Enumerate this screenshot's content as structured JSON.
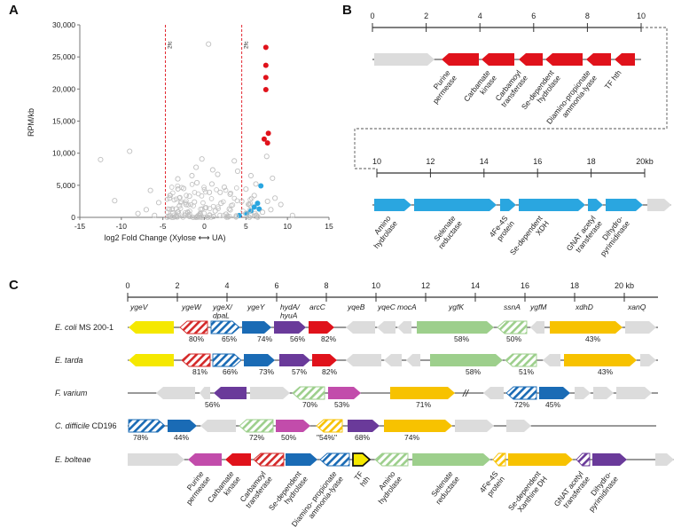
{
  "panels": {
    "a": "A",
    "b": "B",
    "c": "C"
  },
  "colors": {
    "red": "#e0121b",
    "blue": "#2aa6e0",
    "grey": "#dcdcdc",
    "yellow": "#f5e800",
    "darkred": "#d42a2a",
    "navy": "#1a6bb5",
    "purple": "#6a3a9a",
    "green": "#9dcf8c",
    "magenta": "#c24cab",
    "gold": "#f7c200",
    "scatter_grey": "#bfbfbf"
  },
  "chart_data": {
    "type": "scatter",
    "xlabel": "log2 Fold Change (Xylose ⟷ UA)",
    "ylabel": "RPM/kb",
    "xlim": [
      -15,
      15
    ],
    "ylim": [
      0,
      30000
    ],
    "xticks": [
      -15,
      -10,
      -5,
      0,
      5,
      10,
      15
    ],
    "yticks": [
      "0",
      "5,000",
      "10,000",
      "15,000",
      "20,000",
      "25,000",
      "30,000"
    ],
    "threshold_label": "2fc",
    "thresholds": [
      -4.7,
      4.5
    ],
    "series": [
      {
        "color": "red",
        "points": [
          [
            7.4,
            26500
          ],
          [
            7.4,
            23700
          ],
          [
            7.4,
            21800
          ],
          [
            7.4,
            19900
          ],
          [
            7.7,
            13100
          ],
          [
            7.2,
            12200
          ],
          [
            7.6,
            11600
          ]
        ]
      },
      {
        "color": "blue",
        "points": [
          [
            6.8,
            4900
          ],
          [
            6.4,
            2200
          ],
          [
            6.0,
            1600
          ],
          [
            5.6,
            1000
          ],
          [
            4.2,
            300
          ],
          [
            6.6,
            1300
          ],
          [
            5.1,
            600
          ]
        ]
      },
      {
        "color": "grey",
        "points": [
          [
            -12.5,
            9000
          ],
          [
            -9.0,
            10300
          ],
          [
            0.5,
            27000
          ],
          [
            -1.0,
            7800
          ],
          [
            -3.2,
            6000
          ],
          [
            -6.5,
            4200
          ],
          [
            -10.8,
            2600
          ],
          [
            -8.0,
            600
          ],
          [
            -5.5,
            2300
          ],
          [
            -2.5,
            4500
          ],
          [
            -1.8,
            3300
          ],
          [
            -0.9,
            5400
          ],
          [
            0.6,
            3900
          ],
          [
            1.6,
            6700
          ],
          [
            2.4,
            4700
          ],
          [
            3.1,
            3600
          ],
          [
            -0.3,
            9100
          ],
          [
            1.0,
            7400
          ],
          [
            3.6,
            8800
          ],
          [
            4.0,
            7200
          ],
          [
            5.6,
            6500
          ],
          [
            7.5,
            9500
          ],
          [
            8.2,
            6100
          ],
          [
            8.5,
            3000
          ],
          [
            7.6,
            2500
          ],
          [
            9.2,
            2000
          ],
          [
            10.6,
            300
          ],
          [
            6.2,
            5200
          ],
          [
            5.0,
            4400
          ],
          [
            -4.2,
            3000
          ],
          [
            -3.0,
            1800
          ],
          [
            -7.0,
            1200
          ],
          [
            -6.0,
            300
          ],
          [
            -2.0,
            800
          ],
          [
            0.2,
            1500
          ],
          [
            2.0,
            2200
          ],
          [
            3.0,
            1300
          ],
          [
            4.5,
            2500
          ],
          [
            -1.2,
            2400
          ],
          [
            1.3,
            1000
          ],
          [
            -0.5,
            500
          ],
          [
            2.6,
            500
          ],
          [
            -3.8,
            700
          ],
          [
            6.0,
            3400
          ],
          [
            7.0,
            800
          ],
          [
            8.0,
            1200
          ],
          [
            -1.5,
            6500
          ],
          [
            0.9,
            5200
          ],
          [
            1.9,
            3900
          ],
          [
            -2.2,
            2000
          ]
        ]
      }
    ]
  },
  "panel_b": {
    "ruler1": {
      "ticks": [
        "0",
        "2",
        "4",
        "6",
        "8",
        "10"
      ]
    },
    "ruler2": {
      "ticks": [
        "10",
        "12",
        "14",
        "16",
        "18",
        "20kb"
      ]
    },
    "row1_labels": [
      "Purine\npermease",
      "Carbamate\nkinase",
      "Carbamoyl\ntransferase",
      "Se-dependent\nhydrolase",
      "Diamino-propionate\nammonia-lyase",
      "TF hth"
    ],
    "row2_labels": [
      "Amino\nhydrolase",
      "Selenate\nreductase",
      "4Fe-4S\nprotein",
      "Se-dependent\nXDH",
      "GNAT acetyl\ntransferase",
      "Dihydro-\npyrimidinase"
    ]
  },
  "panel_c": {
    "ruler": {
      "ticks": [
        "0",
        "2",
        "4",
        "6",
        "8",
        "10",
        "12",
        "14",
        "16",
        "18",
        "20 kb"
      ]
    },
    "gene_names": [
      "ygeV",
      "ygeW",
      "ygeX/\ndpaL",
      "ygeY",
      "hydA/\nhyuA",
      "arcC",
      "yqeB",
      "yqeC",
      "mocA",
      "ygfK",
      "ssnA",
      "ygfM",
      "xdhD",
      "xanQ"
    ],
    "organisms": [
      {
        "name": "E. coli",
        "strain": "MS 200-1",
        "pcts": [
          "80%",
          "65%",
          "74%",
          "56%",
          "82%",
          "58%",
          "50%",
          "43%"
        ]
      },
      {
        "name": "E. tarda",
        "strain": "",
        "pcts": [
          "81%",
          "66%",
          "73%",
          "57%",
          "82%",
          "58%",
          "51%",
          "43%"
        ]
      },
      {
        "name": "F. varium",
        "strain": "",
        "pcts": [
          "56%",
          "70%",
          "53%",
          "71%",
          "72%",
          "45%"
        ]
      },
      {
        "name": "C. difficile",
        "strain": "CD196",
        "pcts": [
          "78%",
          "44%",
          "72%",
          "50%",
          "\"54%\"",
          "68%",
          "74%"
        ]
      },
      {
        "name": "E. bolteae",
        "strain": "",
        "pcts": []
      }
    ],
    "bolteae_labels": [
      "Purine\npermease",
      "Carbamate\nkinase",
      "Carbamoyl\ntransferase",
      "Se-dependent\nhydrolase",
      "Diamino- propionate\nammonia-lyase",
      "TF\nhth",
      "Amino\nhydrolase",
      "Selenate\nreductase",
      "4Fe-4S\nprotein",
      "Se-dependent\nXanthine DH",
      "GNAT acetyl\ntransferase",
      "Dihydro-\npyrimidinase"
    ]
  }
}
